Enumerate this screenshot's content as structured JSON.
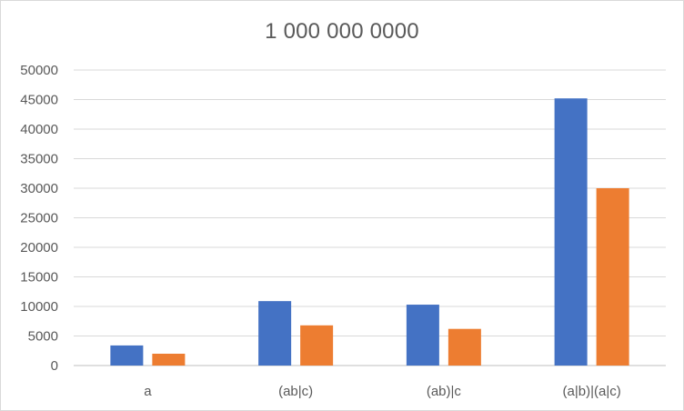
{
  "chart_data": {
    "type": "bar",
    "title": "1 000 000 0000",
    "xlabel": "",
    "ylabel": "",
    "categories": [
      "a",
      "(ab|c)",
      "(ab)|c",
      "(a|b)|(a|c)"
    ],
    "series": [
      {
        "values": [
          3400,
          10900,
          10300,
          45200
        ],
        "color": "#4472C4"
      },
      {
        "values": [
          2000,
          6800,
          6200,
          30000
        ],
        "color": "#ED7D31"
      }
    ],
    "ylim": [
      0,
      50000
    ],
    "yticks": [
      0,
      5000,
      10000,
      15000,
      20000,
      25000,
      30000,
      35000,
      40000,
      45000,
      50000
    ],
    "grid": true,
    "legend": "none"
  }
}
